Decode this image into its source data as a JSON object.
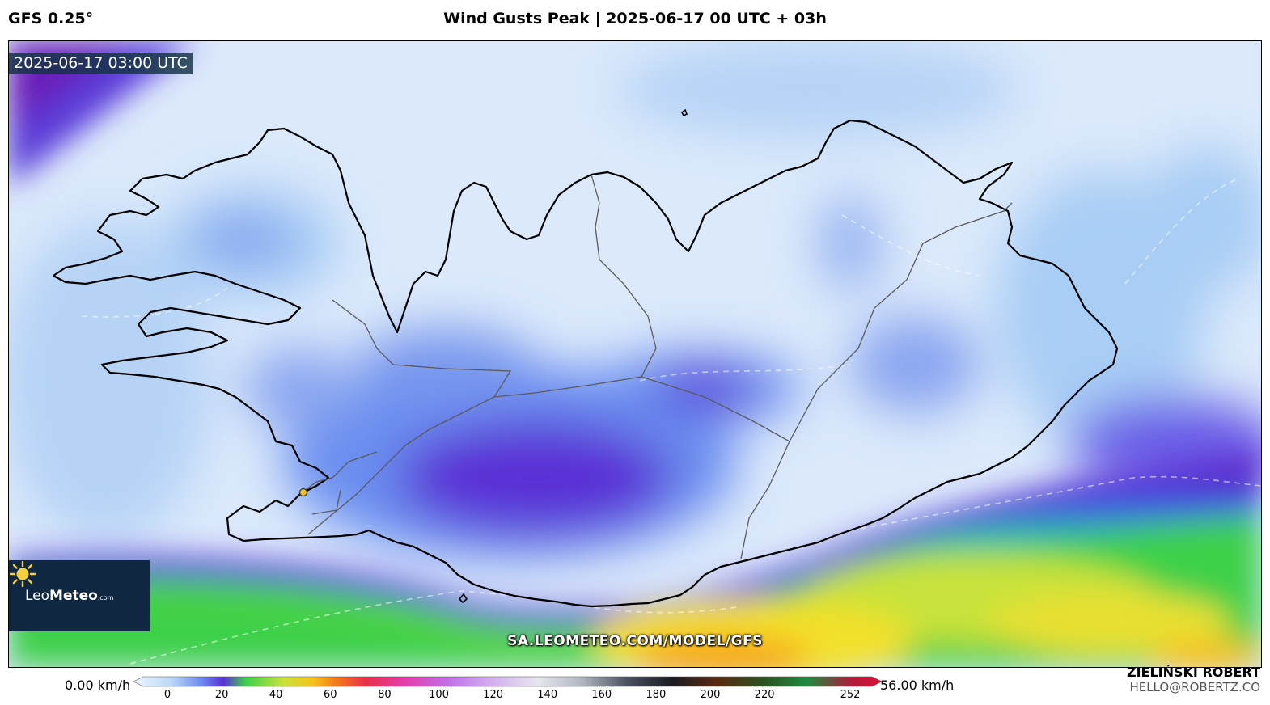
{
  "header": {
    "model": "GFS 0.25°",
    "title": "Wind Gusts Peak | 2025-06-17 00 UTC + 03h"
  },
  "map": {
    "timestamp": "2025-06-17 03:00 UTC",
    "url": "SA.LEOMETEO.COM/MODEL/GFS",
    "logo": {
      "brand_light": "Leo",
      "brand_bold": "Meteo",
      "suffix": ".com"
    },
    "colors": {
      "calm": "#dbe9fb",
      "light": "#a9cdf5",
      "moderate": "#6b8ef0",
      "strong": "#5a2fd6",
      "very_strong": "#6a1fb8",
      "storm_green": "#3ed04a",
      "storm_yellow": "#f3e02a",
      "storm_orange": "#f7a81a"
    }
  },
  "colorbar": {
    "min_label": "0.00 km/h",
    "max_label": "56.00 km/h",
    "ticks": [
      "0",
      "20",
      "40",
      "60",
      "80",
      "100",
      "120",
      "140",
      "160",
      "180",
      "200",
      "220",
      "252"
    ]
  },
  "author": {
    "name": "ZIELIŃSKI ROBERT",
    "email": "HELLO@ROBERTZ.CO"
  }
}
